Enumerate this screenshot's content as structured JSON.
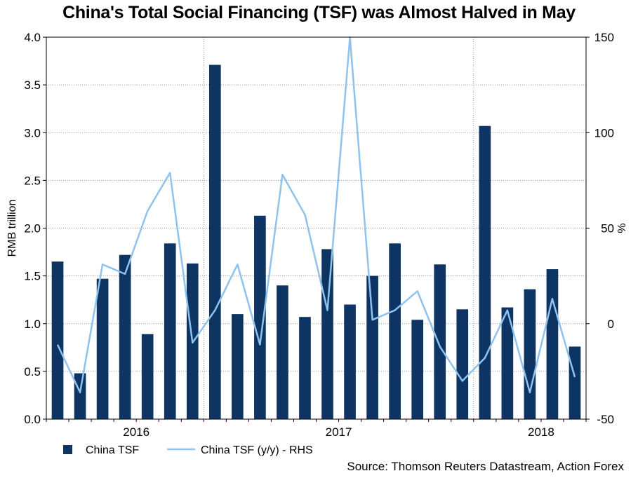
{
  "title": "China's Total Social Financing (TSF) was Almost Halved in May",
  "source": "Source: Thomson Reuters Datastream, Action Forex",
  "colors": {
    "bar": "#0d3463",
    "line": "#8fc3ee",
    "grid": "#9a9a9a"
  },
  "chart_data": {
    "type": "bar+line",
    "title": "China's Total Social Financing (TSF) was Almost Halved in May",
    "ylabel": "RMB trillion",
    "y2label": "%",
    "ylim": [
      0,
      4.0
    ],
    "y2lim": [
      -50,
      150
    ],
    "yticks": [
      "0.0",
      "0.5",
      "1.0",
      "1.5",
      "2.0",
      "2.5",
      "3.0",
      "3.5",
      "4.0"
    ],
    "y2ticks": [
      "-50",
      "0",
      "50",
      "100",
      "150"
    ],
    "x_year_labels": [
      {
        "label": "2016",
        "at_index": 3.5
      },
      {
        "label": "2017",
        "at_index": 12.5
      },
      {
        "label": "2018",
        "at_index": 21.5
      }
    ],
    "year_dividers_after_index": [
      6.5,
      18.5
    ],
    "grid": true,
    "series": [
      {
        "name": "China TSF",
        "type": "bar",
        "axis": "left",
        "values": [
          1.65,
          0.48,
          1.47,
          1.72,
          0.89,
          1.84,
          1.63,
          3.71,
          1.1,
          2.13,
          1.4,
          1.07,
          1.78,
          1.2,
          1.5,
          1.84,
          1.04,
          1.62,
          1.15,
          3.07,
          1.17,
          1.36,
          1.57,
          0.76
        ]
      },
      {
        "name": "China TSF (y/y) - RHS",
        "type": "line",
        "axis": "right",
        "values": [
          -11,
          -36,
          31,
          26,
          59,
          79,
          -10,
          7,
          31,
          -11,
          78,
          57,
          7,
          150,
          2,
          7,
          17,
          -12,
          -30,
          -18,
          7,
          -36,
          13,
          -28
        ]
      }
    ],
    "legend": [
      {
        "label": "China TSF",
        "kind": "bar"
      },
      {
        "label": "China TSF (y/y) - RHS",
        "kind": "line"
      }
    ]
  }
}
